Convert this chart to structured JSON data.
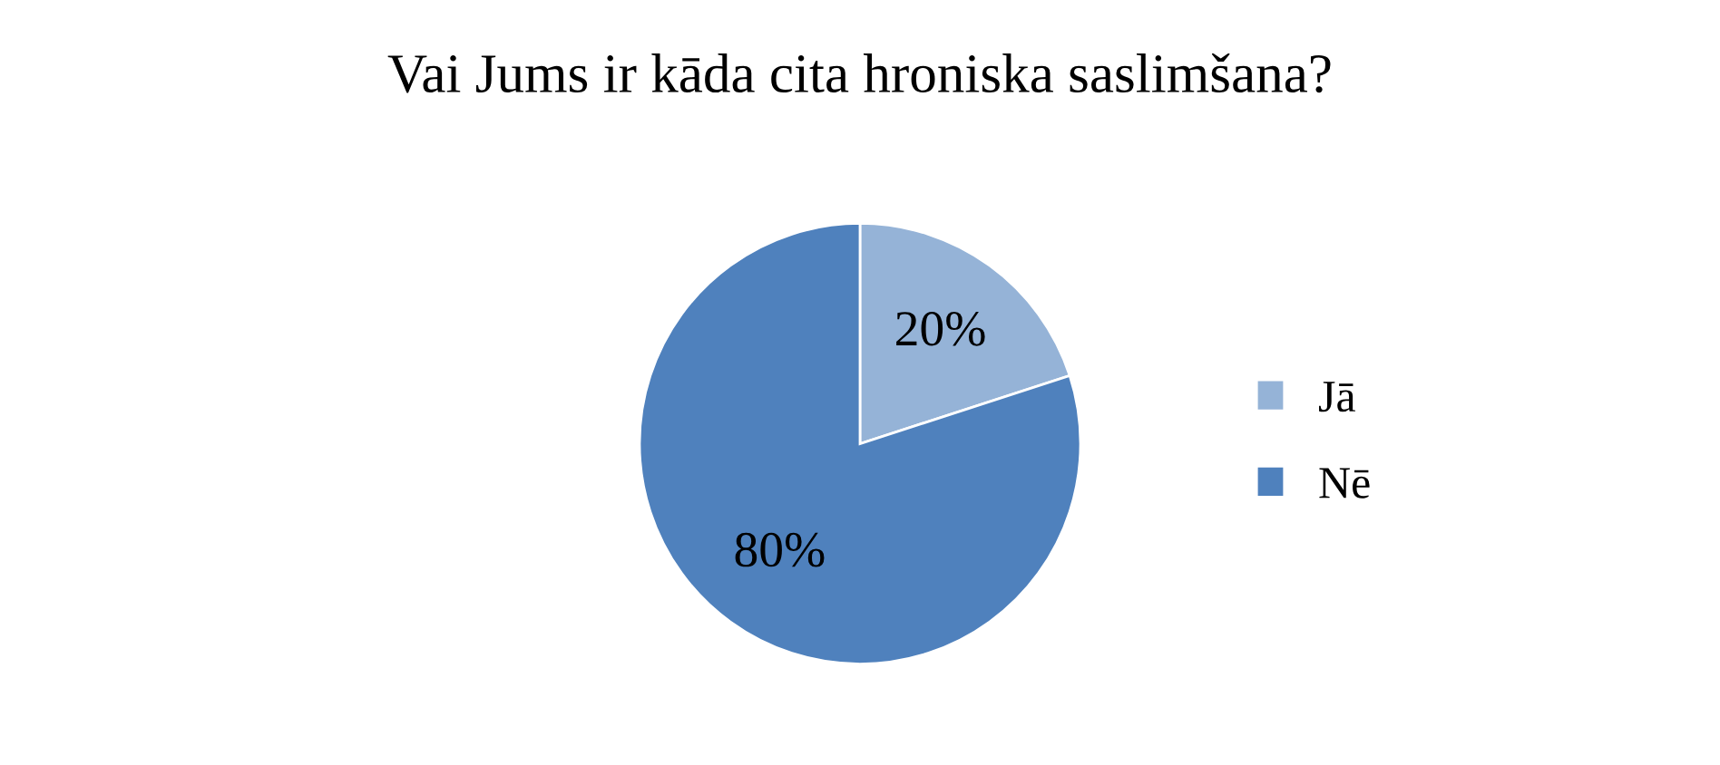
{
  "chart_data": {
    "type": "pie",
    "title": "Vai Jums ir kāda cita hroniska saslimšana?",
    "categories": [
      "Jā",
      "Nē"
    ],
    "values": [
      20,
      80
    ],
    "colors": [
      "#95b3d7",
      "#4f81bd"
    ],
    "value_labels": [
      "20%",
      "80%"
    ],
    "legend": "right"
  }
}
